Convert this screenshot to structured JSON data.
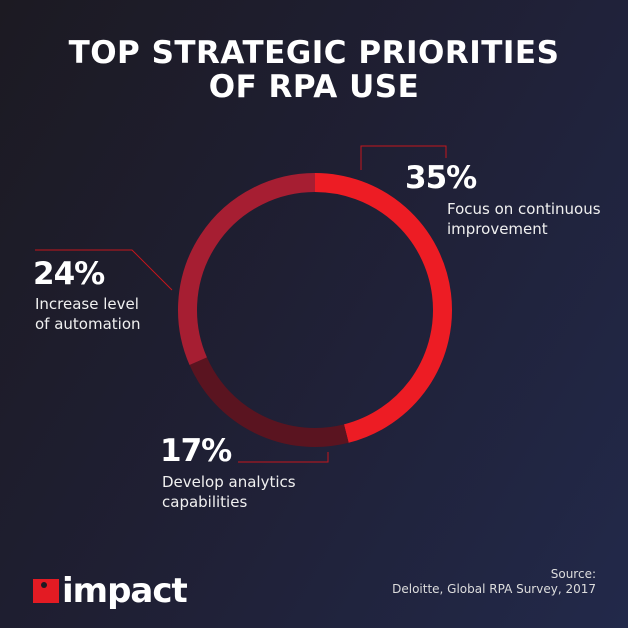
{
  "title_line1": "TOP STRATEGIC PRIORITIES",
  "title_line2": "OF RPA USE",
  "chart_data": {
    "type": "pie",
    "title": "TOP STRATEGIC PRIORITIES OF RPA USE",
    "donut": true,
    "slices": [
      {
        "value": 35,
        "label": "35%",
        "name_line1": "Focus on continuous",
        "name_line2": "improvement",
        "color": "#ed1c24"
      },
      {
        "value": 17,
        "label": "17%",
        "name_line1": "Develop analytics",
        "name_line2": "capabilities",
        "color": "#5a1420"
      },
      {
        "value": 24,
        "label": "24%",
        "name_line1": "Increase level",
        "name_line2": "of automation",
        "color": "#a61e32"
      }
    ]
  },
  "source_label": "Source:",
  "source_text": "Deloitte, Global RPA Survey, 2017",
  "logo_text": "impact",
  "leader_color": "#c4161c"
}
